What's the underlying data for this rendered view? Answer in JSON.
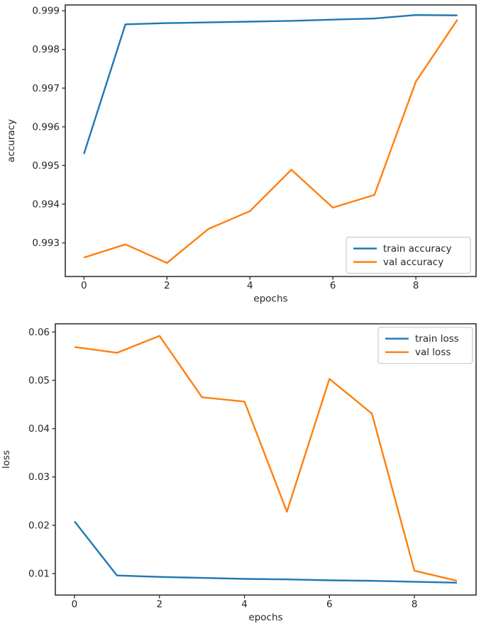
{
  "figure": {
    "background": "#ffffff",
    "spine_color": "#333333",
    "text_color": "#262626",
    "legend_border": "#cccccc",
    "legend_bg": "#ffffff",
    "accent_blue": "#1f77b4",
    "accent_orange": "#ff7f0e"
  },
  "chart_data": [
    {
      "type": "line",
      "title": "",
      "xlabel": "epochs",
      "ylabel": "accuracy",
      "x": [
        0,
        1,
        2,
        3,
        4,
        5,
        6,
        7,
        8,
        9
      ],
      "series": [
        {
          "name": "train accuracy",
          "color": "#1f77b4",
          "values": [
            0.9953,
            0.99865,
            0.99868,
            0.9987,
            0.99872,
            0.99874,
            0.99877,
            0.9988,
            0.99889,
            0.99888
          ]
        },
        {
          "name": "val accuracy",
          "color": "#ff7f0e",
          "values": [
            0.99262,
            0.99296,
            0.99248,
            0.99336,
            0.99382,
            0.99489,
            0.99391,
            0.99424,
            0.99717,
            0.99877
          ]
        }
      ],
      "xlim": [
        -0.45,
        9.45
      ],
      "ylim": [
        0.99213,
        0.99915
      ],
      "xticks": [
        {
          "v": 0,
          "label": "0"
        },
        {
          "v": 2,
          "label": "2"
        },
        {
          "v": 4,
          "label": "4"
        },
        {
          "v": 6,
          "label": "6"
        },
        {
          "v": 8,
          "label": "8"
        }
      ],
      "yticks": [
        {
          "v": 0.993,
          "label": "0.993"
        },
        {
          "v": 0.994,
          "label": "0.994"
        },
        {
          "v": 0.995,
          "label": "0.995"
        },
        {
          "v": 0.996,
          "label": "0.996"
        },
        {
          "v": 0.997,
          "label": "0.997"
        },
        {
          "v": 0.998,
          "label": "0.998"
        },
        {
          "v": 0.999,
          "label": "0.999"
        }
      ],
      "legend": {
        "position": "lower right",
        "entries": [
          "train accuracy",
          "val accuracy"
        ]
      },
      "grid": false
    },
    {
      "type": "line",
      "title": "",
      "xlabel": "epochs",
      "ylabel": "loss",
      "x": [
        0,
        1,
        2,
        3,
        4,
        5,
        6,
        7,
        8,
        9
      ],
      "series": [
        {
          "name": "train loss",
          "color": "#1f77b4",
          "values": [
            0.0208,
            0.0096,
            0.0093,
            0.0091,
            0.0089,
            0.0088,
            0.0086,
            0.0085,
            0.0083,
            0.0081
          ]
        },
        {
          "name": "val loss",
          "color": "#ff7f0e",
          "values": [
            0.0569,
            0.0557,
            0.0592,
            0.0465,
            0.0456,
            0.0228,
            0.0503,
            0.0431,
            0.0106,
            0.0085
          ]
        }
      ],
      "xlim": [
        -0.45,
        9.45
      ],
      "ylim": [
        0.00555,
        0.0617
      ],
      "xticks": [
        {
          "v": 0,
          "label": "0"
        },
        {
          "v": 2,
          "label": "2"
        },
        {
          "v": 4,
          "label": "4"
        },
        {
          "v": 6,
          "label": "6"
        },
        {
          "v": 8,
          "label": "8"
        }
      ],
      "yticks": [
        {
          "v": 0.01,
          "label": "0.01"
        },
        {
          "v": 0.02,
          "label": "0.02"
        },
        {
          "v": 0.03,
          "label": "0.03"
        },
        {
          "v": 0.04,
          "label": "0.04"
        },
        {
          "v": 0.05,
          "label": "0.05"
        },
        {
          "v": 0.06,
          "label": "0.06"
        }
      ],
      "legend": {
        "position": "upper right",
        "entries": [
          "train loss",
          "val loss"
        ]
      },
      "grid": false
    }
  ]
}
